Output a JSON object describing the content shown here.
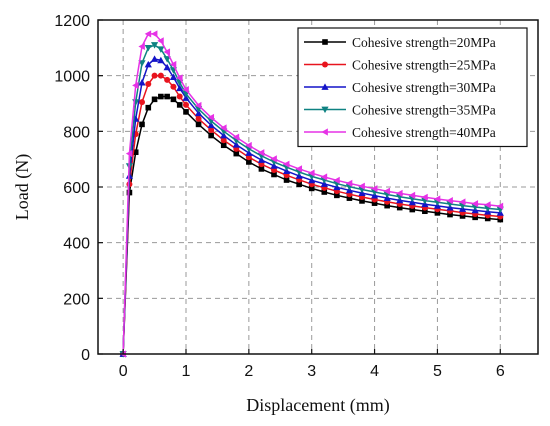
{
  "chart_data": {
    "type": "line",
    "xlabel": "Displacement (mm)",
    "ylabel": "Load (N)",
    "xlim": [
      -0.4,
      6.6
    ],
    "ylim": [
      0,
      1200
    ],
    "xticks": [
      0,
      1,
      2,
      3,
      4,
      5,
      6
    ],
    "yticks": [
      0,
      200,
      400,
      600,
      800,
      1000,
      1200
    ],
    "grid": true,
    "legend_position": "top-right",
    "x": [
      0,
      0.1,
      0.2,
      0.3,
      0.4,
      0.5,
      0.6,
      0.7,
      0.8,
      0.9,
      1.0,
      1.2,
      1.4,
      1.6,
      1.8,
      2.0,
      2.2,
      2.4,
      2.6,
      2.8,
      3.0,
      3.2,
      3.4,
      3.6,
      3.8,
      4.0,
      4.2,
      4.4,
      4.6,
      4.8,
      5.0,
      5.2,
      5.4,
      5.6,
      5.8,
      6.0
    ],
    "series": [
      {
        "name": "Cohesive strength=20MPa",
        "color": "#000000",
        "marker": "square",
        "values": [
          0,
          580,
          725,
          825,
          885,
          915,
          925,
          925,
          915,
          895,
          870,
          825,
          785,
          750,
          720,
          690,
          665,
          645,
          625,
          610,
          595,
          582,
          570,
          560,
          550,
          542,
          533,
          526,
          519,
          513,
          507,
          501,
          496,
          491,
          487,
          483
        ]
      },
      {
        "name": "Cohesive strength=25MPa",
        "color": "#e8141e",
        "marker": "circle",
        "values": [
          0,
          610,
          790,
          905,
          970,
          1000,
          1000,
          985,
          960,
          925,
          895,
          845,
          805,
          768,
          737,
          707,
          682,
          661,
          642,
          626,
          610,
          597,
          585,
          574,
          564,
          555,
          547,
          539,
          532,
          526,
          520,
          514,
          508,
          503,
          498,
          494
        ]
      },
      {
        "name": "Cohesive strength=30MPa",
        "color": "#1414c8",
        "marker": "triangle-up",
        "values": [
          0,
          640,
          845,
          975,
          1040,
          1060,
          1055,
          1030,
          995,
          955,
          920,
          865,
          822,
          785,
          752,
          722,
          697,
          676,
          657,
          640,
          624,
          611,
          599,
          588,
          578,
          569,
          560,
          552,
          545,
          538,
          532,
          526,
          521,
          516,
          511,
          507
        ]
      },
      {
        "name": "Cohesive strength=35MPa",
        "color": "#0f8282",
        "marker": "triangle-down",
        "values": [
          0,
          675,
          905,
          1045,
          1100,
          1110,
          1095,
          1060,
          1020,
          975,
          935,
          880,
          837,
          800,
          767,
          737,
          712,
          690,
          671,
          654,
          638,
          625,
          612,
          601,
          591,
          582,
          573,
          565,
          558,
          551,
          545,
          539,
          533,
          528,
          523,
          519
        ]
      },
      {
        "name": "Cohesive strength=40MPa",
        "color": "#e632e6",
        "marker": "triangle-left",
        "values": [
          0,
          720,
          965,
          1105,
          1150,
          1150,
          1125,
          1085,
          1040,
          992,
          950,
          893,
          850,
          812,
          779,
          749,
          723,
          701,
          682,
          665,
          650,
          636,
          624,
          613,
          603,
          594,
          585,
          577,
          570,
          563,
          557,
          551,
          546,
          540,
          536,
          531
        ]
      }
    ]
  }
}
